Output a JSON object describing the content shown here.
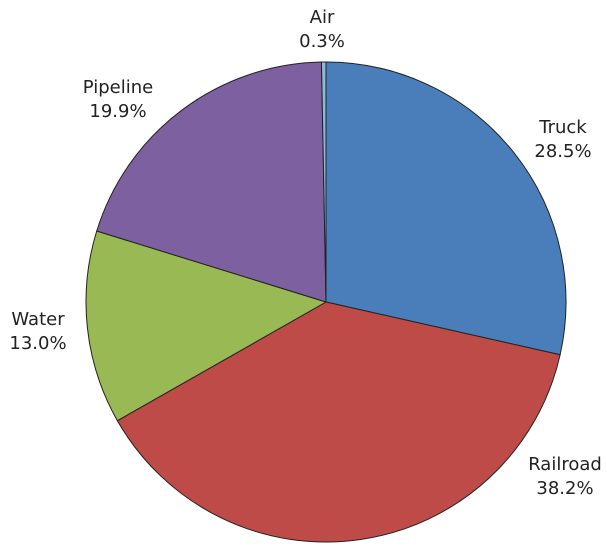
{
  "chart_data": {
    "type": "pie",
    "categories": [
      "Truck",
      "Railroad",
      "Water",
      "Pipeline",
      "Air"
    ],
    "values": [
      28.5,
      38.2,
      13.0,
      19.9,
      0.3
    ],
    "value_labels": [
      "28.5%",
      "38.2%",
      "13.0%",
      "19.9%",
      "0.3%"
    ],
    "colors": [
      "#4a7ebb",
      "#be4b48",
      "#98b954",
      "#7d60a0",
      "#8fb9dc"
    ]
  }
}
